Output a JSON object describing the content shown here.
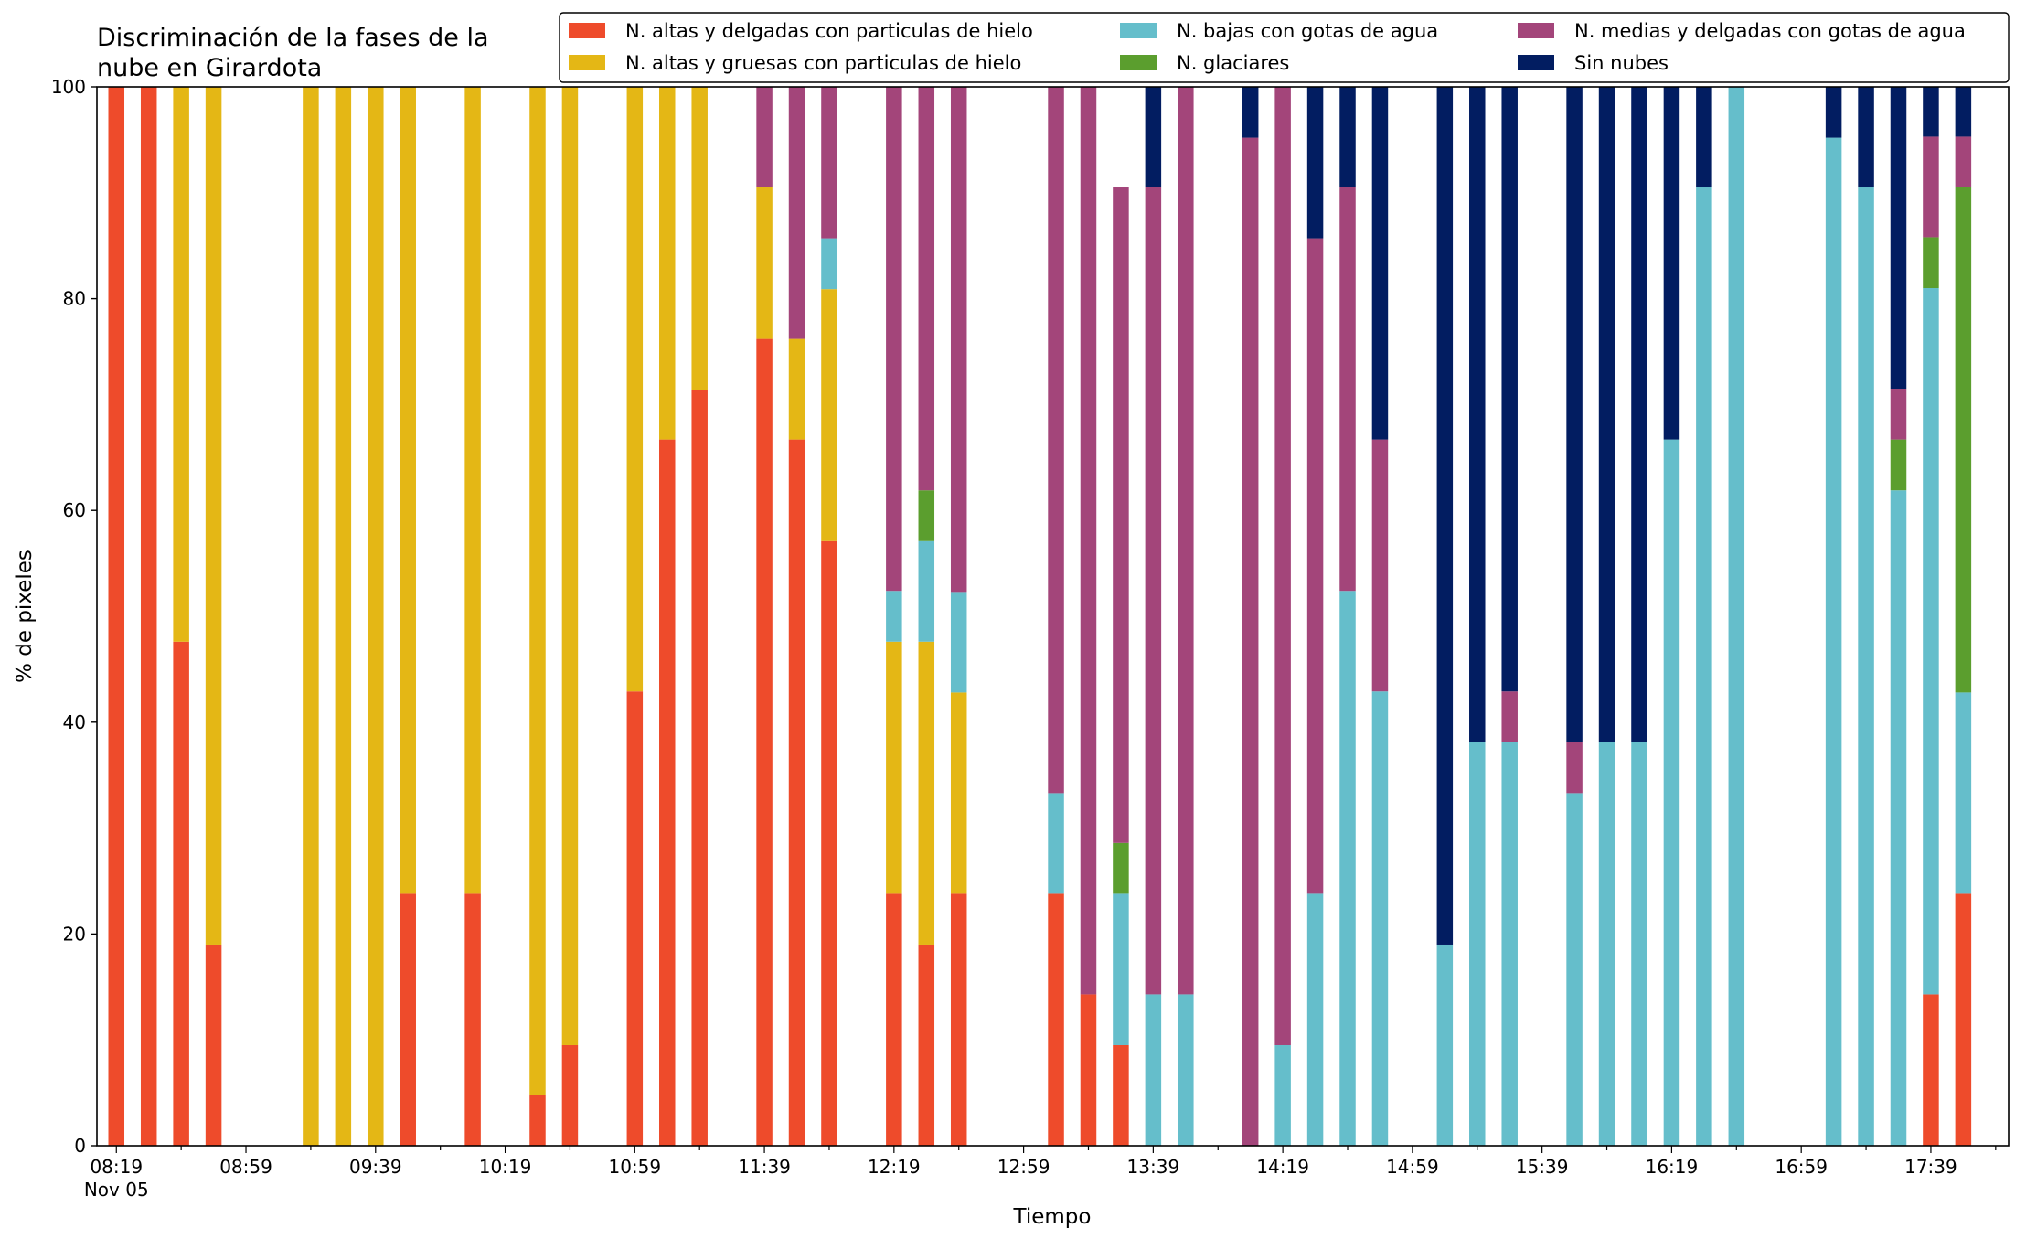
{
  "chart_data": {
    "type": "bar",
    "stacked": true,
    "title_lines": [
      "Discriminación de la fases de la",
      "nube en Girardota"
    ],
    "xlabel": "Tiempo",
    "ylabel": "% de pixeles",
    "ylim": [
      0,
      100
    ],
    "yticks": [
      0,
      20,
      40,
      60,
      80,
      100
    ],
    "xlim": [
      "08:13",
      "18:03"
    ],
    "xtick_labels": [
      {
        "time": "08:19",
        "label": "08:19",
        "sublabel": "Nov 05"
      },
      {
        "time": "08:59",
        "label": "08:59"
      },
      {
        "time": "09:39",
        "label": "09:39"
      },
      {
        "time": "10:19",
        "label": "10:19"
      },
      {
        "time": "10:59",
        "label": "10:59"
      },
      {
        "time": "11:39",
        "label": "11:39"
      },
      {
        "time": "12:19",
        "label": "12:19"
      },
      {
        "time": "12:59",
        "label": "12:59"
      },
      {
        "time": "13:39",
        "label": "13:39"
      },
      {
        "time": "14:19",
        "label": "14:19"
      },
      {
        "time": "14:59",
        "label": "14:59"
      },
      {
        "time": "15:39",
        "label": "15:39"
      },
      {
        "time": "16:19",
        "label": "16:19"
      },
      {
        "time": "16:59",
        "label": "16:59"
      },
      {
        "time": "17:39",
        "label": "17:39"
      }
    ],
    "grid": false,
    "legend_position": "top-right",
    "legend_columns": 3,
    "series": [
      {
        "name": "N. altas y delgadas con particulas de hielo",
        "color": "#EE4B2B"
      },
      {
        "name": "N. altas y gruesas con particulas de hielo",
        "color": "#E4B715"
      },
      {
        "name": "N. bajas con gotas de agua",
        "color": "#65BECB"
      },
      {
        "name": "N. glaciares",
        "color": "#5B9E2E"
      },
      {
        "name": "N. medias y delgadas con gotas de agua",
        "color": "#A3457A"
      },
      {
        "name": "Sin nubes",
        "color": "#021D61"
      }
    ],
    "bars": [
      {
        "time": "08:19",
        "values": [
          100,
          0,
          0,
          0,
          0,
          0
        ]
      },
      {
        "time": "08:29",
        "values": [
          100,
          0,
          0,
          0,
          0,
          0
        ]
      },
      {
        "time": "08:39",
        "values": [
          47.6,
          52.4,
          0,
          0,
          0,
          0
        ]
      },
      {
        "time": "08:49",
        "values": [
          19,
          81,
          0,
          0,
          0,
          0
        ]
      },
      {
        "time": "09:19",
        "values": [
          0,
          100,
          0,
          0,
          0,
          0
        ]
      },
      {
        "time": "09:29",
        "values": [
          0,
          100,
          0,
          0,
          0,
          0
        ]
      },
      {
        "time": "09:39",
        "values": [
          0,
          100,
          0,
          0,
          0,
          0
        ]
      },
      {
        "time": "09:49",
        "values": [
          23.8,
          76.2,
          0,
          0,
          0,
          0
        ]
      },
      {
        "time": "10:09",
        "values": [
          23.8,
          76.2,
          0,
          0,
          0,
          0
        ]
      },
      {
        "time": "10:29",
        "values": [
          4.8,
          95.2,
          0,
          0,
          0,
          0
        ]
      },
      {
        "time": "10:39",
        "values": [
          9.5,
          90.5,
          0,
          0,
          0,
          0
        ]
      },
      {
        "time": "10:59",
        "values": [
          42.9,
          57.1,
          0,
          0,
          0,
          0
        ]
      },
      {
        "time": "11:09",
        "values": [
          66.7,
          33.3,
          0,
          0,
          0,
          0
        ]
      },
      {
        "time": "11:19",
        "values": [
          71.4,
          28.6,
          0,
          0,
          0,
          0
        ]
      },
      {
        "time": "11:39",
        "values": [
          76.2,
          14.3,
          0,
          0,
          9.5,
          0
        ]
      },
      {
        "time": "11:49",
        "values": [
          66.7,
          9.5,
          0,
          0,
          23.8,
          0
        ]
      },
      {
        "time": "11:59",
        "values": [
          57.1,
          23.8,
          4.8,
          0,
          14.3,
          0
        ]
      },
      {
        "time": "12:19",
        "values": [
          23.8,
          23.8,
          4.8,
          0,
          47.6,
          0
        ]
      },
      {
        "time": "12:29",
        "values": [
          19,
          28.6,
          9.5,
          4.8,
          38.1,
          0
        ]
      },
      {
        "time": "12:39",
        "values": [
          23.8,
          19,
          9.5,
          0,
          47.7,
          0
        ]
      },
      {
        "time": "13:09",
        "values": [
          23.8,
          0,
          9.5,
          0,
          66.7,
          0
        ]
      },
      {
        "time": "13:19",
        "values": [
          14.3,
          0,
          0,
          0,
          85.7,
          0
        ]
      },
      {
        "time": "13:29",
        "values": [
          9.5,
          0,
          14.3,
          4.8,
          61.9,
          0
        ]
      },
      {
        "time": "13:39",
        "values": [
          0,
          0,
          14.3,
          0,
          76.2,
          9.5
        ]
      },
      {
        "time": "13:49",
        "values": [
          0,
          0,
          14.3,
          0,
          85.7,
          0
        ]
      },
      {
        "time": "14:09",
        "values": [
          0,
          0,
          0,
          0,
          95.2,
          4.8
        ]
      },
      {
        "time": "14:19",
        "values": [
          0,
          0,
          9.5,
          0,
          90.5,
          0
        ]
      },
      {
        "time": "14:29",
        "values": [
          0,
          0,
          23.8,
          0,
          61.9,
          14.3
        ]
      },
      {
        "time": "14:39",
        "values": [
          0,
          0,
          52.4,
          0,
          38.1,
          9.5
        ]
      },
      {
        "time": "14:49",
        "values": [
          0,
          0,
          42.9,
          0,
          23.8,
          33.3
        ]
      },
      {
        "time": "15:09",
        "values": [
          0,
          0,
          19,
          0,
          0,
          81
        ]
      },
      {
        "time": "15:19",
        "values": [
          0,
          0,
          38.1,
          0,
          0,
          61.9
        ]
      },
      {
        "time": "15:29",
        "values": [
          0,
          0,
          38.1,
          0,
          4.8,
          57.1
        ]
      },
      {
        "time": "15:49",
        "values": [
          0,
          0,
          33.3,
          0,
          4.8,
          61.9
        ]
      },
      {
        "time": "15:59",
        "values": [
          0,
          0,
          38.1,
          0,
          0,
          61.9
        ]
      },
      {
        "time": "16:09",
        "values": [
          0,
          0,
          38.1,
          0,
          0,
          61.9
        ]
      },
      {
        "time": "16:19",
        "values": [
          0,
          0,
          66.7,
          0,
          0,
          33.3
        ]
      },
      {
        "time": "16:29",
        "values": [
          0,
          0,
          90.5,
          0,
          0,
          9.5
        ]
      },
      {
        "time": "16:39",
        "values": [
          0,
          0,
          100,
          0,
          0,
          0
        ]
      },
      {
        "time": "17:09",
        "values": [
          0,
          0,
          95.2,
          0,
          0,
          4.8
        ]
      },
      {
        "time": "17:19",
        "values": [
          0,
          0,
          90.5,
          0,
          0,
          9.5
        ]
      },
      {
        "time": "17:29",
        "values": [
          0,
          0,
          61.9,
          4.8,
          4.8,
          28.5
        ]
      },
      {
        "time": "17:39",
        "values": [
          14.3,
          0,
          66.7,
          4.8,
          9.5,
          4.7
        ]
      },
      {
        "time": "17:49",
        "values": [
          23.8,
          0,
          19,
          47.7,
          4.8,
          4.7
        ]
      }
    ]
  }
}
